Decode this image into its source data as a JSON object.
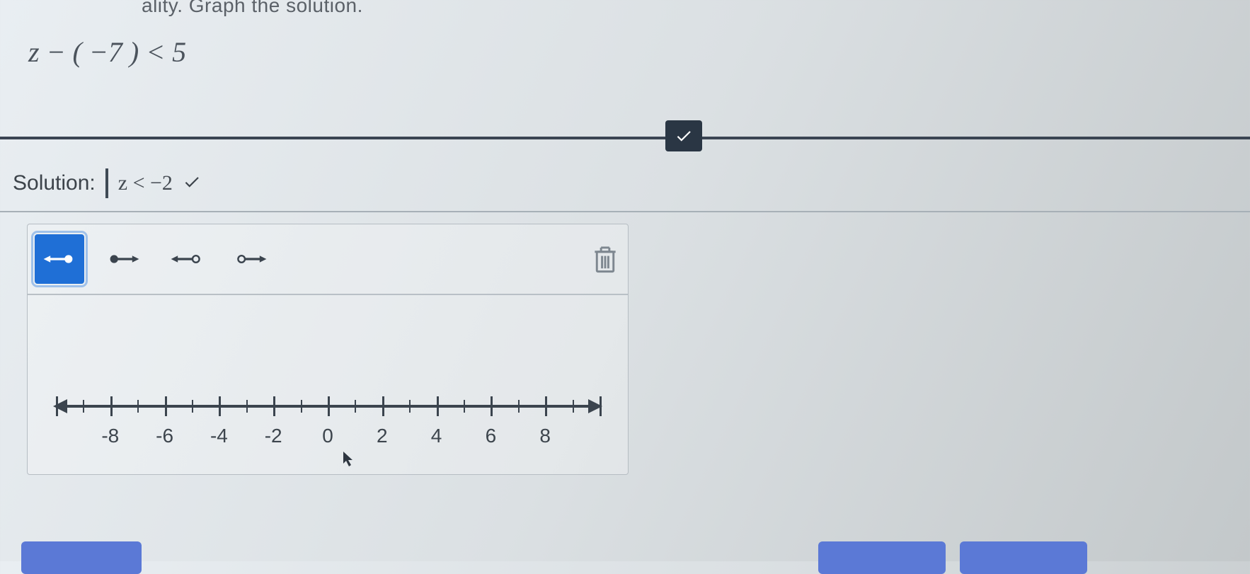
{
  "prompt_fragment": "ality. Graph the solution.",
  "inequality_html": "z − ( −7 ) < 5",
  "solution": {
    "label": "Solution:",
    "value": "z < −2",
    "correct": true
  },
  "divider": {
    "check": true,
    "color": "#2a3644"
  },
  "toolbar": {
    "selected_index": 0,
    "tools": [
      {
        "name": "closed-ray-left",
        "icon": "ray_closed_left",
        "selected": true
      },
      {
        "name": "closed-ray-right",
        "icon": "ray_closed_right",
        "selected": false
      },
      {
        "name": "open-ray-left",
        "icon": "ray_open_left",
        "selected": false
      },
      {
        "name": "open-ray-right",
        "icon": "ray_open_right",
        "selected": false
      }
    ]
  },
  "numberline": {
    "min": -10,
    "max": 10,
    "major_step": 2,
    "minor_step": 1,
    "labels": [
      -8,
      -6,
      -4,
      -2,
      0,
      2,
      4,
      6,
      8
    ],
    "axis_color": "#3b444e",
    "label_fontsize": 28
  },
  "colors": {
    "accent": "#1f6fd6",
    "text": "#3c434a",
    "panel_border": "#b6bdc3"
  }
}
